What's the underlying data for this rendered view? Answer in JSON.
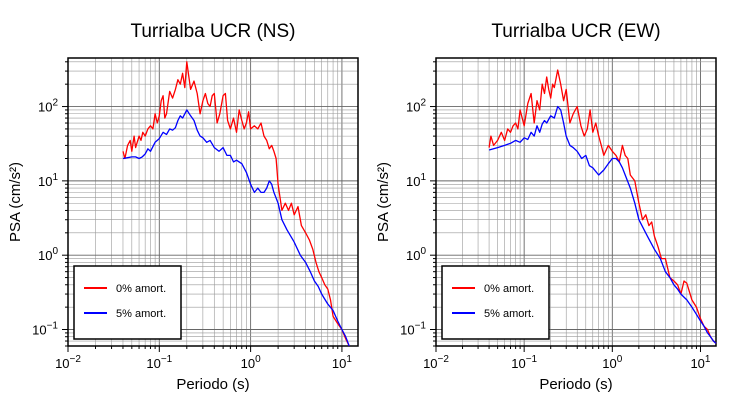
{
  "chart_data": [
    {
      "type": "line",
      "title": "Turrialba UCR (NS)",
      "xlabel": "Periodo (s)",
      "ylabel": "PSA (cm/s²)",
      "xscale": "log",
      "yscale": "log",
      "xlim": [
        0.01,
        15
      ],
      "ylim": [
        0.06,
        450
      ],
      "xticks": [
        {
          "base": "10",
          "exp": "−2"
        },
        {
          "base": "10",
          "exp": "−1"
        },
        {
          "base": "10",
          "exp": "0"
        },
        {
          "base": "10",
          "exp": "1"
        }
      ],
      "yticks": [
        {
          "base": "10",
          "exp": "−1"
        },
        {
          "base": "10",
          "exp": "0"
        },
        {
          "base": "10",
          "exp": "1"
        },
        {
          "base": "10",
          "exp": "2"
        }
      ],
      "grid": true,
      "legend_position": "bottom-left",
      "series": [
        {
          "name": "0% amort.",
          "color": "#ff0000",
          "x": [
            0.04,
            0.042,
            0.045,
            0.048,
            0.05,
            0.053,
            0.055,
            0.06,
            0.063,
            0.066,
            0.07,
            0.075,
            0.08,
            0.085,
            0.09,
            0.095,
            0.1,
            0.105,
            0.11,
            0.115,
            0.12,
            0.13,
            0.14,
            0.15,
            0.16,
            0.17,
            0.18,
            0.19,
            0.2,
            0.21,
            0.22,
            0.24,
            0.26,
            0.28,
            0.3,
            0.32,
            0.34,
            0.36,
            0.38,
            0.4,
            0.43,
            0.46,
            0.5,
            0.53,
            0.56,
            0.6,
            0.65,
            0.7,
            0.75,
            0.8,
            0.85,
            0.9,
            0.95,
            1.0,
            1.1,
            1.2,
            1.3,
            1.4,
            1.5,
            1.6,
            1.7,
            1.8,
            1.9,
            2.0,
            2.2,
            2.4,
            2.6,
            2.8,
            3.0,
            3.3,
            3.6,
            4.0,
            4.4,
            4.8,
            5.2,
            5.6,
            6.0,
            6.5,
            7.0,
            7.5,
            8.0,
            9.0,
            10.0,
            11.0,
            12.0
          ],
          "y": [
            25,
            20,
            30,
            35,
            25,
            40,
            28,
            40,
            35,
            45,
            40,
            50,
            55,
            50,
            80,
            60,
            75,
            120,
            140,
            70,
            80,
            160,
            130,
            170,
            230,
            200,
            280,
            180,
            400,
            260,
            170,
            220,
            150,
            80,
            120,
            150,
            110,
            100,
            140,
            150,
            60,
            80,
            140,
            150,
            65,
            50,
            70,
            45,
            90,
            65,
            50,
            60,
            85,
            50,
            55,
            50,
            60,
            40,
            35,
            27,
            30,
            25,
            20,
            9,
            4,
            5,
            4,
            5,
            3.5,
            4.5,
            2.5,
            2,
            1.6,
            1.2,
            0.8,
            0.6,
            0.5,
            0.4,
            0.35,
            0.25,
            0.15,
            0.12,
            0.1,
            0.075,
            0.06
          ]
        },
        {
          "name": "5% amort.",
          "color": "#0000ff",
          "x": [
            0.04,
            0.045,
            0.05,
            0.055,
            0.06,
            0.065,
            0.07,
            0.075,
            0.08,
            0.09,
            0.1,
            0.11,
            0.12,
            0.13,
            0.14,
            0.15,
            0.16,
            0.17,
            0.18,
            0.19,
            0.2,
            0.22,
            0.24,
            0.26,
            0.28,
            0.3,
            0.33,
            0.36,
            0.4,
            0.45,
            0.5,
            0.55,
            0.6,
            0.65,
            0.7,
            0.8,
            0.9,
            1.0,
            1.1,
            1.2,
            1.3,
            1.4,
            1.5,
            1.6,
            1.7,
            1.8,
            2.0,
            2.2,
            2.5,
            3.0,
            3.5,
            4.0,
            4.5,
            5.0,
            5.5,
            6.0,
            7.0,
            8.0,
            9.0,
            10.0,
            11.0,
            12.0
          ],
          "y": [
            20,
            20.5,
            21,
            21,
            20,
            21,
            23,
            27,
            25,
            33,
            37,
            45,
            42,
            50,
            48,
            52,
            65,
            75,
            70,
            80,
            90,
            75,
            65,
            48,
            40,
            38,
            33,
            35,
            28,
            25,
            28,
            22,
            22,
            18,
            19,
            17,
            13,
            9,
            7,
            8,
            7,
            7,
            8,
            10,
            9,
            7,
            5,
            3,
            2.2,
            1.5,
            1.0,
            0.8,
            0.6,
            0.45,
            0.38,
            0.3,
            0.22,
            0.18,
            0.13,
            0.1,
            0.08,
            0.06
          ]
        }
      ]
    },
    {
      "type": "line",
      "title": "Turrialba UCR (EW)",
      "xlabel": "Periodo (s)",
      "ylabel": "PSA (cm/s²)",
      "xscale": "log",
      "yscale": "log",
      "xlim": [
        0.01,
        15
      ],
      "ylim": [
        0.06,
        450
      ],
      "xticks": [
        {
          "base": "10",
          "exp": "−2"
        },
        {
          "base": "10",
          "exp": "−1"
        },
        {
          "base": "10",
          "exp": "0"
        },
        {
          "base": "10",
          "exp": "1"
        }
      ],
      "yticks": [
        {
          "base": "10",
          "exp": "−1"
        },
        {
          "base": "10",
          "exp": "0"
        },
        {
          "base": "10",
          "exp": "1"
        },
        {
          "base": "10",
          "exp": "2"
        }
      ],
      "grid": true,
      "legend_position": "bottom-left",
      "series": [
        {
          "name": "0% amort.",
          "color": "#ff0000",
          "x": [
            0.04,
            0.042,
            0.045,
            0.05,
            0.055,
            0.06,
            0.065,
            0.07,
            0.075,
            0.08,
            0.085,
            0.09,
            0.1,
            0.11,
            0.12,
            0.13,
            0.14,
            0.15,
            0.16,
            0.17,
            0.18,
            0.19,
            0.2,
            0.21,
            0.22,
            0.24,
            0.26,
            0.28,
            0.3,
            0.33,
            0.36,
            0.4,
            0.44,
            0.48,
            0.52,
            0.56,
            0.6,
            0.65,
            0.7,
            0.75,
            0.8,
            0.9,
            1.0,
            1.1,
            1.2,
            1.3,
            1.4,
            1.5,
            1.6,
            1.8,
            2.0,
            2.2,
            2.4,
            2.6,
            2.8,
            3.0,
            3.3,
            3.6,
            4.0,
            4.5,
            5.0,
            5.5,
            6.0,
            6.5,
            7.0,
            7.5,
            8.0,
            9.0,
            10.0,
            11.0,
            12.0,
            13.0,
            14.0,
            15.0
          ],
          "y": [
            28,
            40,
            30,
            35,
            45,
            35,
            50,
            45,
            55,
            60,
            50,
            90,
            55,
            110,
            150,
            60,
            120,
            90,
            200,
            150,
            250,
            170,
            130,
            200,
            180,
            310,
            200,
            120,
            170,
            60,
            80,
            100,
            55,
            40,
            50,
            90,
            45,
            60,
            40,
            30,
            22,
            30,
            25,
            22,
            18,
            30,
            22,
            20,
            12,
            10,
            5,
            3,
            3.5,
            2.5,
            2.8,
            1.8,
            1.3,
            0.9,
            0.9,
            0.5,
            0.45,
            0.4,
            0.3,
            0.45,
            0.42,
            0.32,
            0.25,
            0.2,
            0.14,
            0.11,
            0.1,
            0.08,
            0.07,
            0.065
          ]
        },
        {
          "name": "5% amort.",
          "color": "#0000ff",
          "x": [
            0.04,
            0.05,
            0.06,
            0.07,
            0.08,
            0.09,
            0.1,
            0.11,
            0.12,
            0.13,
            0.14,
            0.15,
            0.16,
            0.17,
            0.18,
            0.2,
            0.22,
            0.24,
            0.26,
            0.28,
            0.3,
            0.33,
            0.36,
            0.4,
            0.45,
            0.5,
            0.55,
            0.6,
            0.7,
            0.8,
            0.9,
            1.0,
            1.1,
            1.2,
            1.3,
            1.4,
            1.6,
            1.8,
            2.0,
            2.5,
            3.0,
            3.5,
            4.0,
            4.5,
            5.0,
            5.5,
            6.0,
            7.0,
            8.0,
            9.0,
            10.0,
            11.0,
            12.0,
            13.0,
            14.0,
            15.0
          ],
          "y": [
            26,
            28,
            30,
            32,
            35,
            33,
            38,
            36,
            45,
            40,
            55,
            45,
            58,
            65,
            60,
            75,
            70,
            100,
            90,
            60,
            40,
            30,
            28,
            25,
            20,
            22,
            16,
            15,
            12,
            14,
            17,
            20,
            20,
            18,
            15,
            12,
            8,
            5,
            3,
            1.8,
            1.2,
            0.9,
            0.6,
            0.5,
            0.4,
            0.35,
            0.3,
            0.25,
            0.2,
            0.16,
            0.13,
            0.11,
            0.09,
            0.08,
            0.07,
            0.065
          ]
        }
      ]
    }
  ]
}
